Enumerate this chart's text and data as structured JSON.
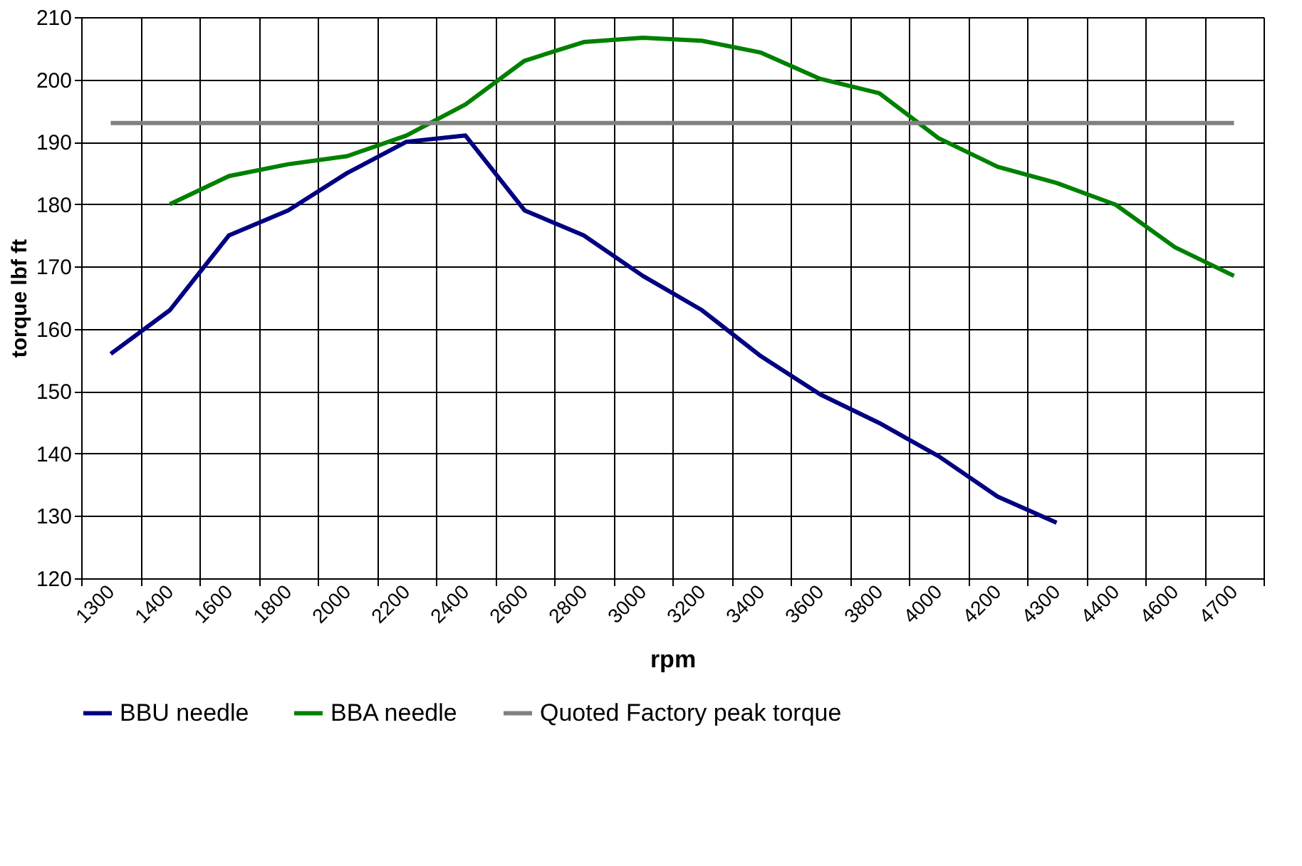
{
  "chart_data": {
    "type": "line",
    "xlabel": "rpm",
    "ylabel": "torque lbf ft",
    "categories": [
      "1300",
      "1400",
      "1600",
      "1800",
      "2000",
      "2200",
      "2400",
      "2600",
      "2800",
      "3000",
      "3200",
      "3400",
      "3600",
      "3800",
      "4000",
      "4200",
      "4300",
      "4400",
      "4600",
      "4700"
    ],
    "series": [
      {
        "name": "BBU needle",
        "color": "#000080",
        "values": [
          156,
          163,
          175,
          179,
          185,
          190,
          191,
          179,
          175,
          168.5,
          163,
          155.6,
          149.5,
          144.9,
          139.6,
          133.1,
          128.9,
          null,
          null,
          null
        ]
      },
      {
        "name": "BBA needle",
        "color": "#008000",
        "values": [
          null,
          180,
          184.5,
          186.4,
          187.7,
          191,
          196,
          203,
          206,
          206.7,
          206.2,
          204.3,
          200.1,
          197.8,
          190.6,
          186,
          183.4,
          179.9,
          173.1,
          168.5
        ]
      },
      {
        "name": "Quoted Factory peak torque",
        "color": "#808080",
        "values": [
          193,
          193,
          193,
          193,
          193,
          193,
          193,
          193,
          193,
          193,
          193,
          193,
          193,
          193,
          193,
          193,
          193,
          193,
          193,
          193
        ]
      }
    ],
    "ylim": [
      120,
      210
    ],
    "yticks": [
      120,
      130,
      140,
      150,
      160,
      170,
      180,
      190,
      200,
      210
    ],
    "grid": true,
    "legend": "bottom",
    "line_style": "solid"
  }
}
